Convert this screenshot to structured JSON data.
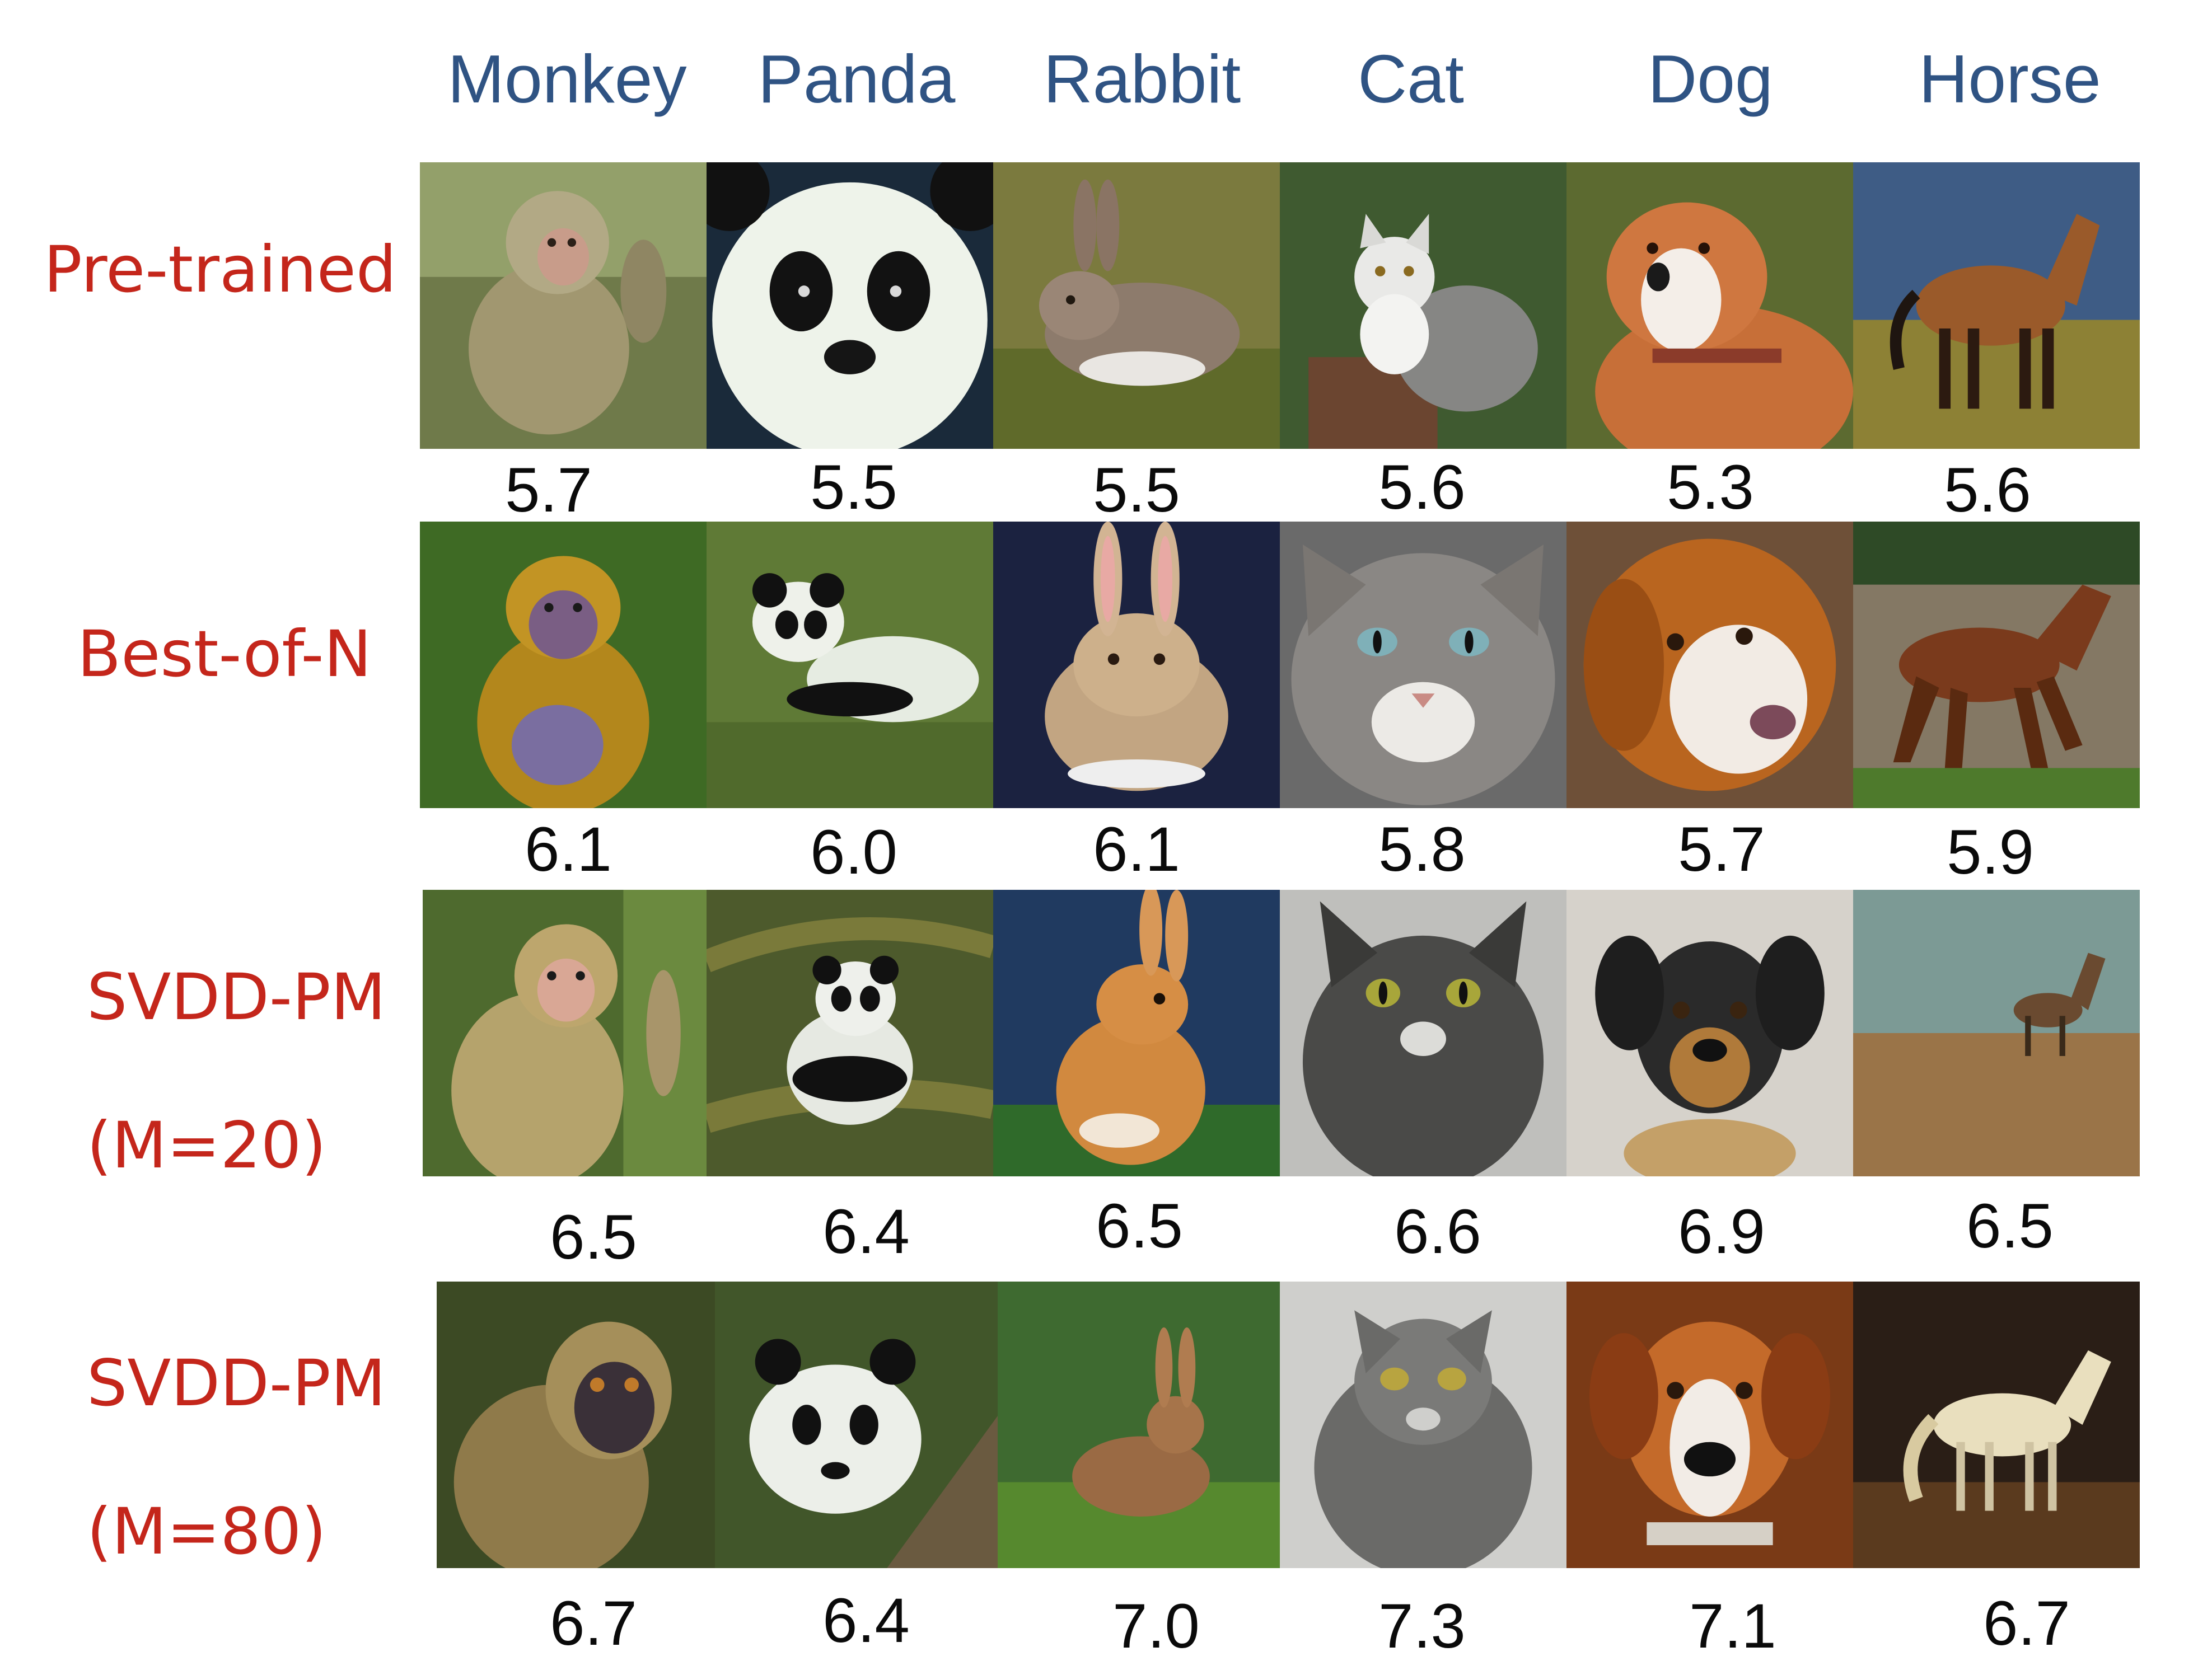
{
  "columns": [
    "Monkey",
    "Panda",
    "Rabbit",
    "Cat",
    "Dog",
    "Horse"
  ],
  "rows": [
    {
      "label_lines": [
        "Pre-trained"
      ],
      "scores": [
        "5.7",
        "5.5",
        "5.5",
        "5.6",
        "5.3",
        "5.6"
      ]
    },
    {
      "label_lines": [
        "Best-of-N"
      ],
      "scores": [
        "6.1",
        "6.0",
        "6.1",
        "5.8",
        "5.7",
        "5.9"
      ]
    },
    {
      "label_lines": [
        "SVDD-PM",
        "(M=20)"
      ],
      "scores": [
        "6.5",
        "6.4",
        "6.5",
        "6.6",
        "6.9",
        "6.5"
      ]
    },
    {
      "label_lines": [
        "SVDD-PM",
        "(M=80)"
      ],
      "scores": [
        "6.7",
        "6.4",
        "7.0",
        "7.3",
        "7.1",
        "6.7"
      ]
    }
  ],
  "colors": {
    "column_header": "#2f5383",
    "row_label": "#c4261b",
    "score": "#0a0a0a"
  }
}
